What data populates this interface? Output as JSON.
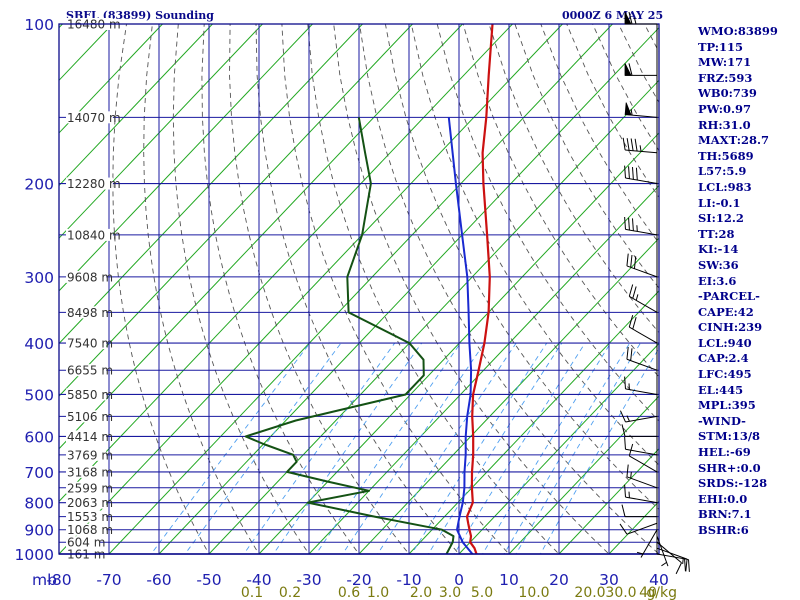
{
  "header": {
    "title": "SBFL (83899) Sounding",
    "timestamp": "0000Z  6 MAY 25"
  },
  "indices": [
    "WMO:83899",
    "TP:115",
    "MW:171",
    "FRZ:593",
    "WB0:739",
    "PW:0.97",
    "RH:31.0",
    "MAXT:28.7",
    "TH:5689",
    "L57:5.9",
    "LCL:983",
    "LI:-0.1",
    "SI:12.2",
    "TT:28",
    "KI:-14",
    "SW:36",
    "EI:3.6",
    "-PARCEL-",
    "CAPE:42",
    "CINH:239",
    "LCL:940",
    "CAP:2.4",
    "LFC:495",
    "EL:445",
    "MPL:395",
    "-WIND-",
    "STM:13/8",
    "HEL:-69",
    "SHR+:0.0",
    "SRDS:-128",
    "EHI:0.0",
    "BRN:7.1",
    "BSHR:6"
  ],
  "colors": {
    "frame": "#0a0a8a",
    "isobar": "#1a1aa0",
    "isotherm": "#22a822",
    "dry_adiabat": "#555555",
    "mixing_ratio": "#4f9ff0",
    "temperature": "#cc1111",
    "dewpoint": "#145214",
    "parcel": "#1a2ad0",
    "wind": "#000000",
    "mixing_label": "#7a7a10",
    "height_label": "#333333"
  },
  "chart_data": {
    "type": "line",
    "xlabel": "",
    "ylabel": "",
    "y_unit_label": "mb",
    "mixing_ratio_unit": "g/kg",
    "ylim": [
      1000,
      100
    ],
    "temperature_ticks": [
      -80,
      -70,
      -60,
      -50,
      -40,
      -30,
      -20,
      -10,
      0,
      10,
      20,
      30,
      40
    ],
    "pressure_levels": [
      100,
      150,
      200,
      250,
      300,
      350,
      400,
      450,
      500,
      550,
      600,
      650,
      700,
      750,
      800,
      850,
      900,
      950,
      1000
    ],
    "pressure_tick_labels": [
      100,
      200,
      300,
      400,
      500,
      600,
      700,
      800,
      900,
      1000
    ],
    "height_labels": [
      {
        "p": 100,
        "label": "16480 m"
      },
      {
        "p": 150,
        "label": "14070 m"
      },
      {
        "p": 200,
        "label": "12280 m"
      },
      {
        "p": 250,
        "label": "10840 m"
      },
      {
        "p": 300,
        "label": "9608 m"
      },
      {
        "p": 350,
        "label": "8498 m"
      },
      {
        "p": 400,
        "label": "7540 m"
      },
      {
        "p": 450,
        "label": "6655 m"
      },
      {
        "p": 500,
        "label": "5850 m"
      },
      {
        "p": 550,
        "label": "5106 m"
      },
      {
        "p": 600,
        "label": "4414 m"
      },
      {
        "p": 650,
        "label": "3769 m"
      },
      {
        "p": 700,
        "label": "3168 m"
      },
      {
        "p": 750,
        "label": "2599 m"
      },
      {
        "p": 800,
        "label": "2063 m"
      },
      {
        "p": 850,
        "label": "1553 m"
      },
      {
        "p": 900,
        "label": "1068 m"
      },
      {
        "p": 950,
        "label": "604 m"
      },
      {
        "p": 1000,
        "label": "161 m"
      }
    ],
    "mixing_ratio_labels": [
      "0.1",
      "0.2",
      "0.6",
      "1.0",
      "2.0",
      "3.0",
      "5.0",
      "10.0",
      "20.0",
      "30.0",
      "40"
    ],
    "series": [
      {
        "key": "temperature",
        "points": [
          [
            1010,
            24.0
          ],
          [
            1000,
            23.5
          ],
          [
            975,
            22.0
          ],
          [
            950,
            20.0
          ],
          [
            925,
            19.0
          ],
          [
            900,
            17.5
          ],
          [
            875,
            16.0
          ],
          [
            850,
            14.5
          ],
          [
            800,
            13.0
          ],
          [
            750,
            10.0
          ],
          [
            700,
            7.0
          ],
          [
            650,
            4.0
          ],
          [
            600,
            0.5
          ],
          [
            550,
            -3.5
          ],
          [
            500,
            -7.5
          ],
          [
            450,
            -11.0
          ],
          [
            400,
            -15.0
          ],
          [
            350,
            -20.0
          ],
          [
            300,
            -26.5
          ],
          [
            250,
            -35.0
          ],
          [
            200,
            -45.5
          ],
          [
            175,
            -51.5
          ],
          [
            150,
            -57.5
          ],
          [
            125,
            -65.0
          ],
          [
            100,
            -74.0
          ]
        ]
      },
      {
        "key": "dewpoint",
        "points": [
          [
            1010,
            18.5
          ],
          [
            1000,
            17.5
          ],
          [
            950,
            16.5
          ],
          [
            925,
            15.5
          ],
          [
            900,
            12.0
          ],
          [
            850,
            -4.0
          ],
          [
            800,
            -20.0
          ],
          [
            760,
            -10.0
          ],
          [
            730,
            -20.0
          ],
          [
            700,
            -30.0
          ],
          [
            670,
            -30.0
          ],
          [
            650,
            -32.0
          ],
          [
            620,
            -40.0
          ],
          [
            600,
            -45.0
          ],
          [
            560,
            -38.0
          ],
          [
            500,
            -21.0
          ],
          [
            460,
            -21.0
          ],
          [
            430,
            -24.0
          ],
          [
            400,
            -30.0
          ],
          [
            350,
            -48.0
          ],
          [
            300,
            -55.0
          ],
          [
            250,
            -60.0
          ],
          [
            200,
            -68.0
          ],
          [
            175,
            -75.0
          ],
          [
            150,
            -83.0
          ]
        ]
      },
      {
        "key": "parcel",
        "points": [
          [
            1010,
            23.5
          ],
          [
            950,
            18.5
          ],
          [
            900,
            15.0
          ],
          [
            850,
            13.0
          ],
          [
            800,
            11.0
          ],
          [
            750,
            8.5
          ],
          [
            700,
            5.5
          ],
          [
            650,
            2.5
          ],
          [
            600,
            -1.0
          ],
          [
            550,
            -4.5
          ],
          [
            500,
            -8.0
          ],
          [
            450,
            -12.5
          ],
          [
            400,
            -18.0
          ],
          [
            350,
            -24.0
          ],
          [
            300,
            -31.0
          ],
          [
            250,
            -40.0
          ],
          [
            200,
            -51.0
          ],
          [
            150,
            -65.0
          ]
        ]
      }
    ],
    "winds": [
      {
        "p": 1000,
        "dir": 100,
        "spd": 20
      },
      {
        "p": 975,
        "dir": 110,
        "spd": 15
      },
      {
        "p": 950,
        "dir": 130,
        "spd": 10
      },
      {
        "p": 925,
        "dir": 160,
        "spd": 5
      },
      {
        "p": 900,
        "dir": 210,
        "spd": 5
      },
      {
        "p": 875,
        "dir": 250,
        "spd": 10
      },
      {
        "p": 850,
        "dir": 270,
        "spd": 10
      },
      {
        "p": 800,
        "dir": 280,
        "spd": 15
      },
      {
        "p": 750,
        "dir": 290,
        "spd": 15
      },
      {
        "p": 700,
        "dir": 300,
        "spd": 10
      },
      {
        "p": 650,
        "dir": 280,
        "spd": 10
      },
      {
        "p": 600,
        "dir": 270,
        "spd": 10
      },
      {
        "p": 550,
        "dir": 260,
        "spd": 15
      },
      {
        "p": 500,
        "dir": 280,
        "spd": 15
      },
      {
        "p": 450,
        "dir": 290,
        "spd": 20
      },
      {
        "p": 400,
        "dir": 300,
        "spd": 20
      },
      {
        "p": 350,
        "dir": 300,
        "spd": 25
      },
      {
        "p": 300,
        "dir": 290,
        "spd": 30
      },
      {
        "p": 250,
        "dir": 280,
        "spd": 35
      },
      {
        "p": 200,
        "dir": 280,
        "spd": 40
      },
      {
        "p": 175,
        "dir": 275,
        "spd": 45
      },
      {
        "p": 150,
        "dir": 275,
        "spd": 55
      },
      {
        "p": 125,
        "dir": 270,
        "spd": 60
      },
      {
        "p": 100,
        "dir": 270,
        "spd": 65
      }
    ]
  }
}
